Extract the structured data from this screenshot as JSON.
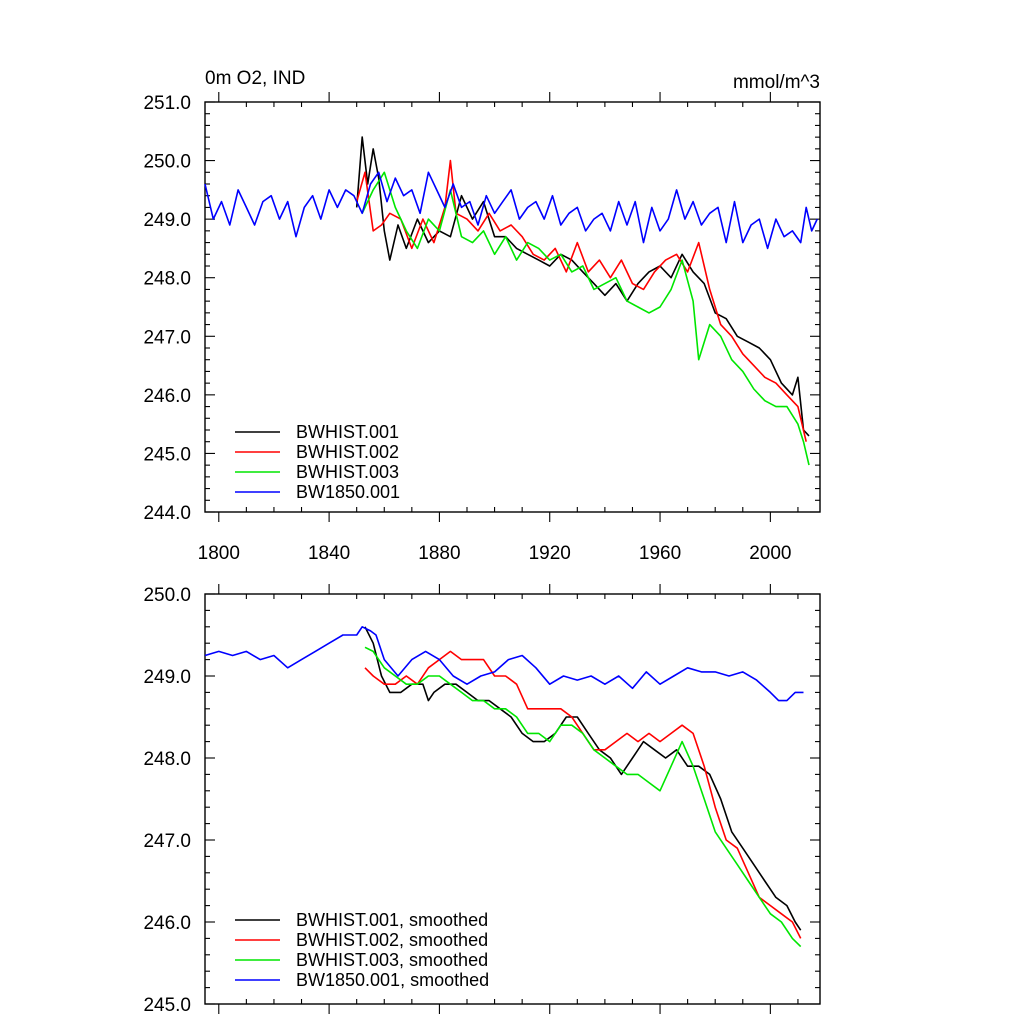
{
  "chart_data": [
    {
      "type": "line",
      "title": "0m O2, IND",
      "units": "mmol/m^3",
      "xlim": [
        1795,
        2018
      ],
      "ylim": [
        244.0,
        251.0
      ],
      "yticks": [
        "244.0",
        "245.0",
        "246.0",
        "247.0",
        "248.0",
        "249.0",
        "250.0",
        "251.0"
      ],
      "yticks_values": [
        244,
        245,
        246,
        247,
        248,
        249,
        250,
        251
      ],
      "xticks": [
        "1800",
        "1840",
        "1880",
        "1920",
        "1960",
        "2000"
      ],
      "xticks_values": [
        1800,
        1840,
        1880,
        1920,
        1960,
        2000
      ],
      "legend_position": "bottom-left",
      "series": [
        {
          "name": "BWHIST.001",
          "color": "#000000",
          "x": [
            1850,
            1852,
            1854,
            1856,
            1858,
            1860,
            1862,
            1865,
            1868,
            1872,
            1876,
            1880,
            1884,
            1888,
            1892,
            1896,
            1900,
            1904,
            1908,
            1912,
            1916,
            1920,
            1924,
            1928,
            1932,
            1936,
            1940,
            1944,
            1948,
            1952,
            1956,
            1960,
            1964,
            1968,
            1972,
            1976,
            1980,
            1984,
            1988,
            1992,
            1996,
            2000,
            2004,
            2008,
            2010,
            2012,
            2014
          ],
          "y": [
            249.2,
            250.4,
            249.6,
            250.2,
            249.7,
            248.8,
            248.3,
            248.9,
            248.5,
            249.0,
            248.6,
            248.8,
            248.7,
            249.4,
            249.0,
            249.3,
            248.7,
            248.7,
            248.5,
            248.4,
            248.3,
            248.2,
            248.4,
            248.3,
            248.1,
            247.9,
            247.7,
            247.9,
            247.6,
            247.9,
            248.1,
            248.2,
            248.0,
            248.4,
            248.1,
            247.9,
            247.4,
            247.3,
            247.0,
            246.9,
            246.8,
            246.6,
            246.2,
            246.0,
            246.3,
            245.4,
            245.3
          ]
        },
        {
          "name": "BWHIST.002",
          "color": "#ff0000",
          "x": [
            1850,
            1853,
            1856,
            1859,
            1862,
            1866,
            1870,
            1874,
            1878,
            1882,
            1884,
            1886,
            1890,
            1894,
            1898,
            1902,
            1906,
            1910,
            1914,
            1918,
            1922,
            1926,
            1930,
            1934,
            1938,
            1942,
            1946,
            1950,
            1954,
            1958,
            1962,
            1966,
            1970,
            1974,
            1978,
            1982,
            1986,
            1990,
            1994,
            1998,
            2002,
            2006,
            2010,
            2013
          ],
          "y": [
            249.3,
            249.8,
            248.8,
            248.9,
            249.1,
            249.0,
            248.5,
            249.0,
            248.6,
            249.2,
            250.0,
            249.1,
            249.0,
            248.8,
            249.1,
            248.8,
            248.9,
            248.7,
            248.4,
            248.3,
            248.5,
            248.1,
            248.6,
            248.1,
            248.3,
            248.0,
            248.3,
            247.9,
            247.8,
            248.1,
            248.3,
            248.4,
            248.1,
            248.6,
            247.8,
            247.2,
            247.0,
            246.7,
            246.5,
            246.3,
            246.2,
            246.0,
            245.8,
            245.2
          ]
        },
        {
          "name": "BWHIST.003",
          "color": "#00e600",
          "x": [
            1852,
            1856,
            1860,
            1864,
            1868,
            1872,
            1876,
            1880,
            1884,
            1888,
            1892,
            1896,
            1900,
            1904,
            1908,
            1912,
            1916,
            1920,
            1924,
            1928,
            1932,
            1936,
            1940,
            1944,
            1948,
            1952,
            1956,
            1960,
            1964,
            1968,
            1972,
            1974,
            1978,
            1982,
            1986,
            1990,
            1994,
            1998,
            2002,
            2006,
            2010,
            2012,
            2014
          ],
          "y": [
            249.1,
            249.5,
            249.8,
            249.2,
            248.8,
            248.5,
            249.0,
            248.8,
            249.5,
            248.7,
            248.6,
            248.8,
            248.4,
            248.7,
            248.3,
            248.6,
            248.5,
            248.3,
            248.4,
            248.1,
            248.2,
            247.8,
            247.9,
            248.0,
            247.6,
            247.5,
            247.4,
            247.5,
            247.8,
            248.3,
            247.6,
            246.6,
            247.2,
            247.0,
            246.6,
            246.4,
            246.1,
            245.9,
            245.8,
            245.8,
            245.5,
            245.2,
            244.8
          ]
        },
        {
          "name": "BW1850.001",
          "color": "#0000ff",
          "x": [
            1795,
            1798,
            1801,
            1804,
            1807,
            1810,
            1813,
            1816,
            1819,
            1822,
            1825,
            1828,
            1831,
            1834,
            1837,
            1840,
            1843,
            1846,
            1849,
            1852,
            1855,
            1858,
            1861,
            1864,
            1867,
            1870,
            1873,
            1876,
            1879,
            1882,
            1885,
            1888,
            1891,
            1894,
            1897,
            1900,
            1903,
            1906,
            1909,
            1912,
            1915,
            1918,
            1921,
            1924,
            1927,
            1930,
            1933,
            1936,
            1939,
            1942,
            1945,
            1948,
            1951,
            1954,
            1957,
            1960,
            1963,
            1966,
            1969,
            1972,
            1975,
            1978,
            1981,
            1984,
            1987,
            1990,
            1993,
            1996,
            1999,
            2002,
            2005,
            2008,
            2011,
            2013,
            2015,
            2017
          ],
          "y": [
            249.6,
            249.0,
            249.3,
            248.9,
            249.5,
            249.2,
            248.9,
            249.3,
            249.4,
            249.0,
            249.3,
            248.7,
            249.2,
            249.4,
            249.0,
            249.5,
            249.2,
            249.5,
            249.4,
            249.1,
            249.6,
            249.8,
            249.3,
            249.7,
            249.4,
            249.5,
            249.1,
            249.8,
            249.5,
            249.2,
            249.6,
            249.2,
            249.3,
            248.9,
            249.4,
            249.1,
            249.3,
            249.5,
            249.0,
            249.2,
            249.3,
            249.0,
            249.4,
            248.9,
            249.1,
            249.2,
            248.8,
            249.0,
            249.1,
            248.8,
            249.3,
            248.9,
            249.3,
            248.6,
            249.2,
            248.8,
            249.0,
            249.5,
            249.0,
            249.3,
            248.9,
            249.1,
            249.2,
            248.6,
            249.3,
            248.6,
            248.9,
            249.0,
            248.5,
            249.0,
            248.7,
            248.8,
            248.6,
            249.2,
            248.8,
            249.0
          ]
        }
      ]
    },
    {
      "type": "line",
      "xlim": [
        1795,
        2018
      ],
      "ylim": [
        245.0,
        250.0
      ],
      "yticks": [
        "245.0",
        "246.0",
        "247.0",
        "248.0",
        "249.0",
        "250.0"
      ],
      "yticks_values": [
        245,
        246,
        247,
        248,
        249,
        250
      ],
      "xticks_values": [
        1800,
        1840,
        1880,
        1920,
        1960,
        2000
      ],
      "legend_position": "bottom-left",
      "series": [
        {
          "name": "BWHIST.001, smoothed",
          "color": "#000000",
          "x": [
            1853,
            1856,
            1859,
            1862,
            1866,
            1870,
            1874,
            1876,
            1878,
            1882,
            1886,
            1890,
            1894,
            1898,
            1902,
            1906,
            1910,
            1914,
            1918,
            1922,
            1926,
            1930,
            1934,
            1938,
            1942,
            1946,
            1950,
            1954,
            1958,
            1962,
            1966,
            1970,
            1974,
            1978,
            1982,
            1986,
            1990,
            1994,
            1998,
            2002,
            2006,
            2009,
            2011
          ],
          "y": [
            249.6,
            249.4,
            249.0,
            248.8,
            248.8,
            248.9,
            248.9,
            248.7,
            248.8,
            248.9,
            248.9,
            248.8,
            248.7,
            248.7,
            248.6,
            248.5,
            248.3,
            248.2,
            248.2,
            248.3,
            248.5,
            248.5,
            248.3,
            248.1,
            248.0,
            247.8,
            248.0,
            248.2,
            248.1,
            248.0,
            248.1,
            247.9,
            247.9,
            247.8,
            247.5,
            247.1,
            246.9,
            246.7,
            246.5,
            246.3,
            246.2,
            246.0,
            245.9
          ]
        },
        {
          "name": "BWHIST.002, smoothed",
          "color": "#ff0000",
          "x": [
            1853,
            1856,
            1860,
            1864,
            1868,
            1872,
            1876,
            1880,
            1884,
            1888,
            1892,
            1896,
            1900,
            1904,
            1908,
            1912,
            1916,
            1920,
            1924,
            1928,
            1932,
            1936,
            1940,
            1944,
            1948,
            1952,
            1956,
            1960,
            1964,
            1968,
            1972,
            1976,
            1980,
            1984,
            1988,
            1992,
            1996,
            2000,
            2004,
            2008,
            2011
          ],
          "y": [
            249.1,
            249.0,
            248.9,
            248.9,
            249.0,
            248.9,
            249.1,
            249.2,
            249.3,
            249.2,
            249.2,
            249.2,
            249.0,
            249.0,
            248.9,
            248.6,
            248.6,
            248.6,
            248.6,
            248.5,
            248.3,
            248.1,
            248.1,
            248.2,
            248.3,
            248.2,
            248.3,
            248.2,
            248.3,
            248.4,
            248.3,
            247.9,
            247.4,
            247.0,
            246.9,
            246.6,
            246.3,
            246.2,
            246.1,
            246.0,
            245.8
          ]
        },
        {
          "name": "BWHIST.003, smoothed",
          "color": "#00e600",
          "x": [
            1853,
            1856,
            1860,
            1864,
            1868,
            1872,
            1876,
            1880,
            1884,
            1888,
            1892,
            1896,
            1900,
            1904,
            1908,
            1912,
            1916,
            1920,
            1924,
            1928,
            1932,
            1936,
            1940,
            1944,
            1948,
            1952,
            1956,
            1960,
            1964,
            1968,
            1972,
            1976,
            1980,
            1984,
            1988,
            1992,
            1996,
            2000,
            2004,
            2008,
            2011
          ],
          "y": [
            249.35,
            249.3,
            249.1,
            249.0,
            248.9,
            248.9,
            249.0,
            249.0,
            248.9,
            248.8,
            248.7,
            248.7,
            248.6,
            248.6,
            248.5,
            248.3,
            248.3,
            248.2,
            248.4,
            248.4,
            248.3,
            248.1,
            248.0,
            247.9,
            247.8,
            247.8,
            247.7,
            247.6,
            247.9,
            248.2,
            247.9,
            247.5,
            247.1,
            246.9,
            246.7,
            246.5,
            246.3,
            246.1,
            246.0,
            245.8,
            245.7
          ]
        },
        {
          "name": "BW1850.001, smoothed",
          "color": "#0000ff",
          "x": [
            1795,
            1800,
            1805,
            1810,
            1815,
            1820,
            1825,
            1830,
            1835,
            1840,
            1845,
            1850,
            1852,
            1855,
            1857,
            1860,
            1865,
            1870,
            1875,
            1880,
            1885,
            1890,
            1895,
            1900,
            1905,
            1910,
            1915,
            1920,
            1925,
            1930,
            1935,
            1940,
            1945,
            1950,
            1955,
            1960,
            1965,
            1970,
            1975,
            1980,
            1985,
            1990,
            1995,
            2000,
            2003,
            2006,
            2009,
            2012
          ],
          "y": [
            249.25,
            249.3,
            249.25,
            249.3,
            249.2,
            249.25,
            249.1,
            249.2,
            249.3,
            249.4,
            249.5,
            249.5,
            249.6,
            249.55,
            249.5,
            249.2,
            249.0,
            249.2,
            249.3,
            249.2,
            249.0,
            248.9,
            249.0,
            249.05,
            249.2,
            249.25,
            249.1,
            248.9,
            249.0,
            248.95,
            249.0,
            248.9,
            249.0,
            248.85,
            249.05,
            248.9,
            249.0,
            249.1,
            249.05,
            249.05,
            249.0,
            249.05,
            248.95,
            248.8,
            248.7,
            248.7,
            248.8,
            248.8
          ]
        }
      ]
    }
  ]
}
